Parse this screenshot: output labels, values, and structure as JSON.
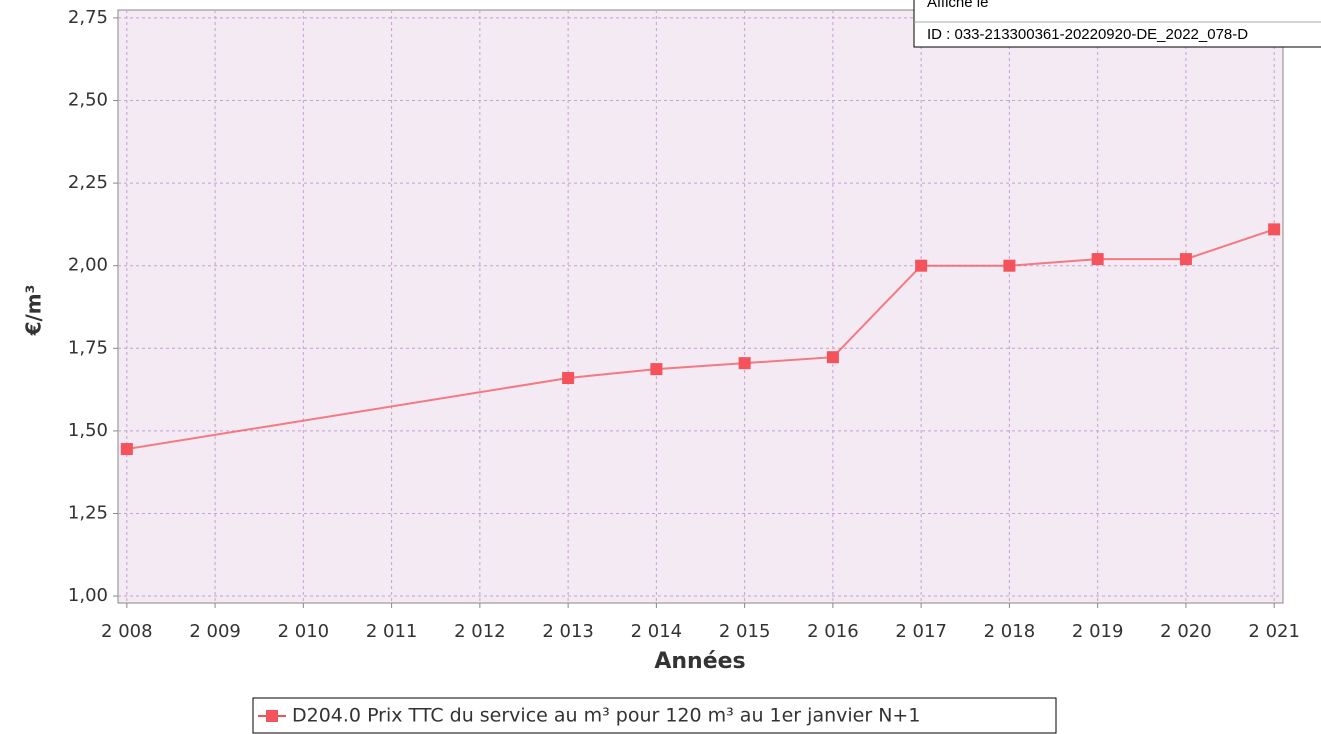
{
  "chart_data": {
    "type": "line",
    "x_label": "Années",
    "y_label": "€/m³",
    "x": [
      2008,
      2013,
      2014,
      2015,
      2016,
      2017,
      2018,
      2019,
      2020,
      2021
    ],
    "series": [
      {
        "name": "D204.0 Prix TTC du service au m³ pour 120 m³ au 1er janvier N+1",
        "color": "#f5535b",
        "values": [
          1.445,
          1.66,
          1.687,
          1.705,
          1.723,
          2.0,
          2.0,
          2.02,
          2.02,
          2.11
        ]
      }
    ],
    "xlim": [
      2007.9,
      2021.1
    ],
    "xticks": [
      {
        "value": 2008,
        "label": "2 008"
      },
      {
        "value": 2009,
        "label": "2 009"
      },
      {
        "value": 2010,
        "label": "2 010"
      },
      {
        "value": 2011,
        "label": "2 011"
      },
      {
        "value": 2012,
        "label": "2 012"
      },
      {
        "value": 2013,
        "label": "2 013"
      },
      {
        "value": 2014,
        "label": "2 014"
      },
      {
        "value": 2015,
        "label": "2 015"
      },
      {
        "value": 2016,
        "label": "2 016"
      },
      {
        "value": 2017,
        "label": "2 017"
      },
      {
        "value": 2018,
        "label": "2 018"
      },
      {
        "value": 2019,
        "label": "2 019"
      },
      {
        "value": 2020,
        "label": "2 020"
      },
      {
        "value": 2021,
        "label": "2 021"
      }
    ],
    "ylim": [
      0.979,
      2.774
    ],
    "yticks": [
      {
        "value": 1.0,
        "label": "1,00"
      },
      {
        "value": 1.25,
        "label": "1,25"
      },
      {
        "value": 1.5,
        "label": "1,50"
      },
      {
        "value": 1.75,
        "label": "1,75"
      },
      {
        "value": 2.0,
        "label": "2,00"
      },
      {
        "value": 2.25,
        "label": "2,25"
      },
      {
        "value": 2.5,
        "label": "2,50"
      },
      {
        "value": 2.75,
        "label": "2,75"
      }
    ],
    "grid": true,
    "legend": "bottom"
  },
  "stamp": {
    "line1": "Affiché le",
    "line2": "ID : 033-213300361-20220920-DE_2022_078-D"
  }
}
